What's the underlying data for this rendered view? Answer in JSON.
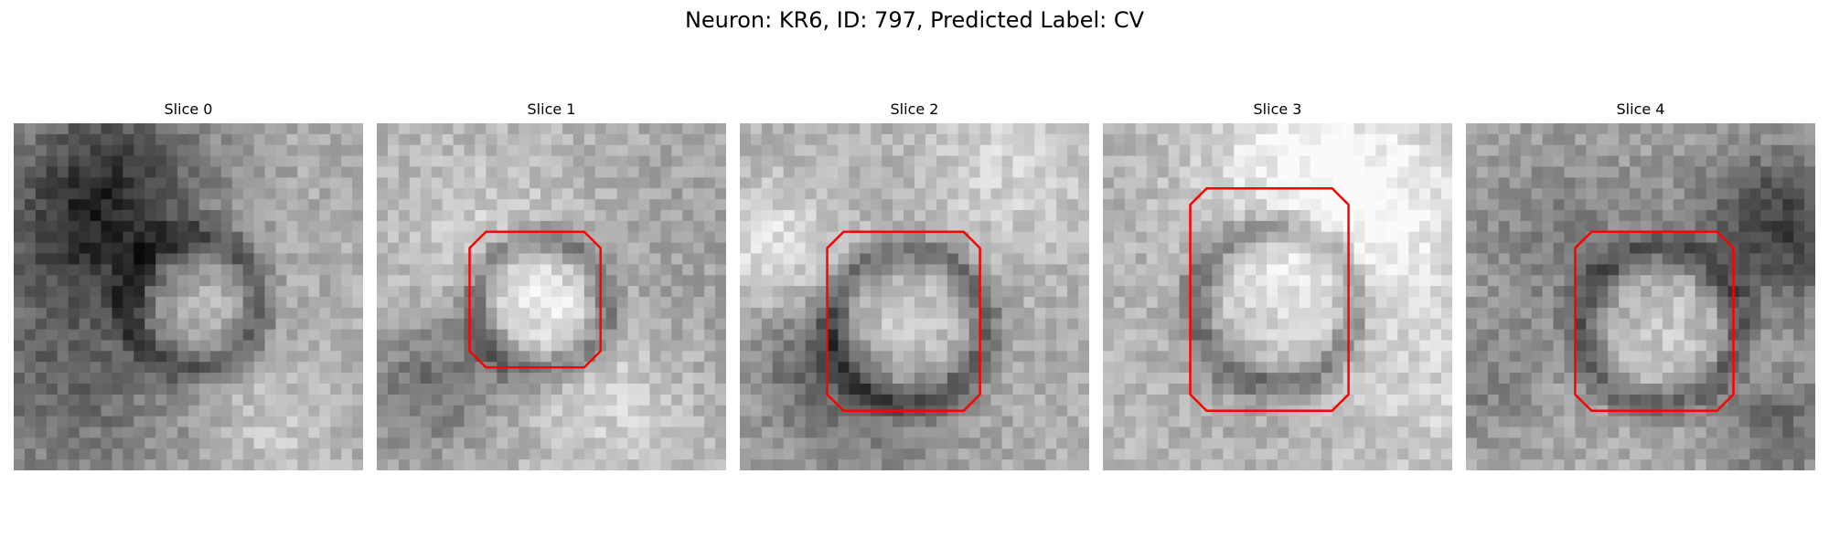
{
  "figure": {
    "title": "Neuron: KR6, ID: 797, Predicted Label: CV"
  },
  "contour_color": "#ff0000",
  "slices": [
    {
      "title": "Slice 0",
      "has_contour": false,
      "seed": 11
    },
    {
      "title": "Slice 1",
      "has_contour": true,
      "seed": 23
    },
    {
      "title": "Slice 2",
      "has_contour": true,
      "seed": 37
    },
    {
      "title": "Slice 3",
      "has_contour": true,
      "seed": 51
    },
    {
      "title": "Slice 4",
      "has_contour": true,
      "seed": 67
    }
  ]
}
